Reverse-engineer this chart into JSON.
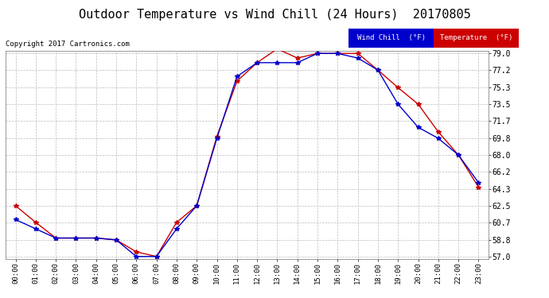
{
  "title": "Outdoor Temperature vs Wind Chill (24 Hours)  20170805",
  "copyright": "Copyright 2017 Cartronics.com",
  "hours": [
    "00:00",
    "01:00",
    "02:00",
    "03:00",
    "04:00",
    "05:00",
    "06:00",
    "07:00",
    "08:00",
    "09:00",
    "10:00",
    "11:00",
    "12:00",
    "13:00",
    "14:00",
    "15:00",
    "16:00",
    "17:00",
    "18:00",
    "19:00",
    "20:00",
    "21:00",
    "22:00",
    "23:00"
  ],
  "temperature": [
    62.5,
    60.7,
    59.0,
    59.0,
    59.0,
    58.8,
    57.5,
    57.0,
    60.7,
    62.5,
    70.0,
    76.0,
    78.0,
    79.5,
    78.5,
    79.0,
    79.0,
    79.0,
    77.2,
    75.3,
    73.5,
    70.5,
    68.0,
    64.5
  ],
  "wind_chill": [
    61.0,
    60.0,
    59.0,
    59.0,
    59.0,
    58.8,
    57.0,
    57.0,
    60.0,
    62.5,
    69.8,
    76.5,
    78.0,
    78.0,
    78.0,
    79.0,
    79.0,
    78.5,
    77.2,
    73.5,
    71.0,
    69.8,
    68.0,
    65.0
  ],
  "temp_color": "#cc0000",
  "wind_chill_color": "#0000cc",
  "ylim_min": 57.0,
  "ylim_max": 79.0,
  "yticks": [
    57.0,
    58.8,
    60.7,
    62.5,
    64.3,
    66.2,
    68.0,
    69.8,
    71.7,
    73.5,
    75.3,
    77.2,
    79.0
  ],
  "bg_color": "#ffffff",
  "plot_bg_color": "#ffffff",
  "grid_color": "#bbbbbb",
  "title_fontsize": 11,
  "legend_wind_chill_bg": "#0000cc",
  "legend_temp_bg": "#cc0000",
  "legend_wind_chill_text": "Wind Chill  (°F)",
  "legend_temp_text": "Temperature  (°F)"
}
